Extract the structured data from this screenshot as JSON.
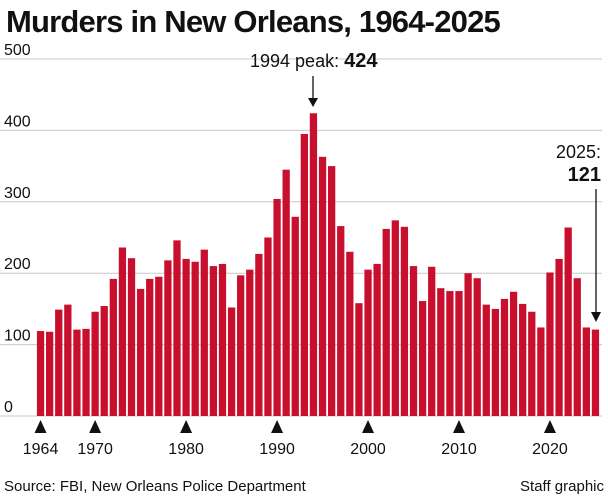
{
  "chart_data": {
    "type": "bar",
    "title": "Murders in New Orleans, 1964-2025",
    "x": [
      1964,
      1965,
      1966,
      1967,
      1968,
      1969,
      1970,
      1971,
      1972,
      1973,
      1974,
      1975,
      1976,
      1977,
      1978,
      1979,
      1980,
      1981,
      1982,
      1983,
      1984,
      1985,
      1986,
      1987,
      1988,
      1989,
      1990,
      1991,
      1992,
      1993,
      1994,
      1995,
      1996,
      1997,
      1998,
      1999,
      2000,
      2001,
      2002,
      2003,
      2004,
      2005,
      2006,
      2007,
      2008,
      2009,
      2010,
      2011,
      2012,
      2013,
      2014,
      2015,
      2016,
      2017,
      2018,
      2019,
      2020,
      2021,
      2022,
      2023,
      2024,
      2025
    ],
    "values": [
      119,
      118,
      149,
      156,
      121,
      122,
      146,
      154,
      192,
      236,
      221,
      178,
      192,
      195,
      218,
      246,
      220,
      216,
      233,
      210,
      213,
      152,
      197,
      205,
      227,
      250,
      304,
      345,
      279,
      395,
      424,
      363,
      350,
      266,
      230,
      158,
      205,
      213,
      262,
      274,
      265,
      210,
      161,
      209,
      179,
      175,
      175,
      200,
      193,
      156,
      150,
      164,
      174,
      157,
      146,
      124,
      201,
      220,
      264,
      193,
      124,
      121
    ],
    "ylim": [
      0,
      500
    ],
    "yticks": [
      0,
      100,
      200,
      300,
      400,
      500
    ],
    "xticks": [
      1964,
      1970,
      1980,
      1990,
      2000,
      2010,
      2020
    ],
    "grid": true,
    "color": "#c8102e"
  },
  "annotations": {
    "peak_label": "1994 peak: ",
    "peak_value": "424",
    "last_label": "2025:",
    "last_value": "121"
  },
  "footer": {
    "source": "Source: FBI, New Orleans Police Department",
    "credit": "Staff graphic"
  }
}
